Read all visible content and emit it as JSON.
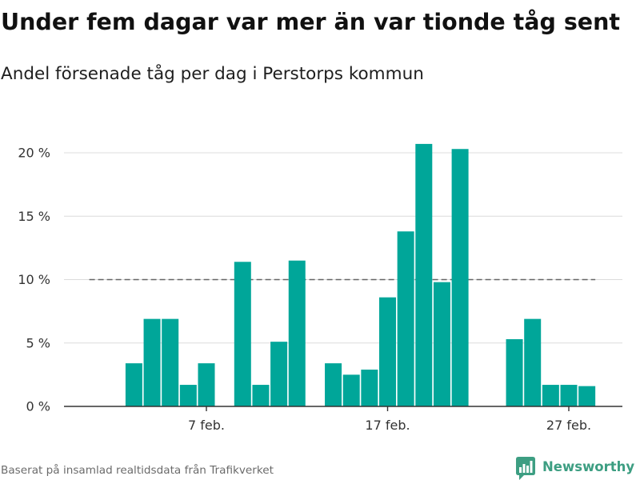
{
  "chart_data": {
    "type": "bar",
    "title": "Under fem dagar var mer än var tionde tåg sent",
    "subtitle": "Andel försenade tåg per dag i Perstorps kommun",
    "x": [
      "3 feb.",
      "4 feb.",
      "5 feb.",
      "6 feb.",
      "7 feb.",
      "9 feb.",
      "10 feb.",
      "11 feb.",
      "12 feb.",
      "14 feb.",
      "15 feb.",
      "16 feb.",
      "17 feb.",
      "18 feb.",
      "19 feb.",
      "20 feb.",
      "21 feb.",
      "24 feb.",
      "25 feb.",
      "26 feb.",
      "27 feb.",
      "28 feb."
    ],
    "values": [
      3.4,
      6.9,
      6.9,
      1.7,
      3.4,
      11.4,
      1.7,
      5.1,
      11.5,
      3.4,
      2.5,
      2.9,
      8.6,
      13.8,
      20.7,
      9.8,
      20.3,
      5.3,
      6.9,
      1.7,
      1.7,
      1.6
    ],
    "ylim": [
      0,
      21
    ],
    "yticks": [
      0,
      5,
      10,
      15,
      20
    ],
    "ytick_labels": [
      "0 %",
      "5 %",
      "10 %",
      "15 %",
      "20 %"
    ],
    "xtick_labels": [
      "7 feb.",
      "17 feb.",
      "27 feb."
    ],
    "reference_line": {
      "y": 10,
      "from": "1 feb.",
      "to": "28 feb.",
      "style": "dashed"
    },
    "grid": true,
    "legend": "none"
  },
  "footer": {
    "source": "Baserat på insamlad realtidsdata från Trafikverket"
  },
  "logo": {
    "text": "Newsworthy",
    "icon": "newsworthy-logo-icon"
  },
  "colors": {
    "bar": "#00a699",
    "brand": "#3d9e82"
  }
}
